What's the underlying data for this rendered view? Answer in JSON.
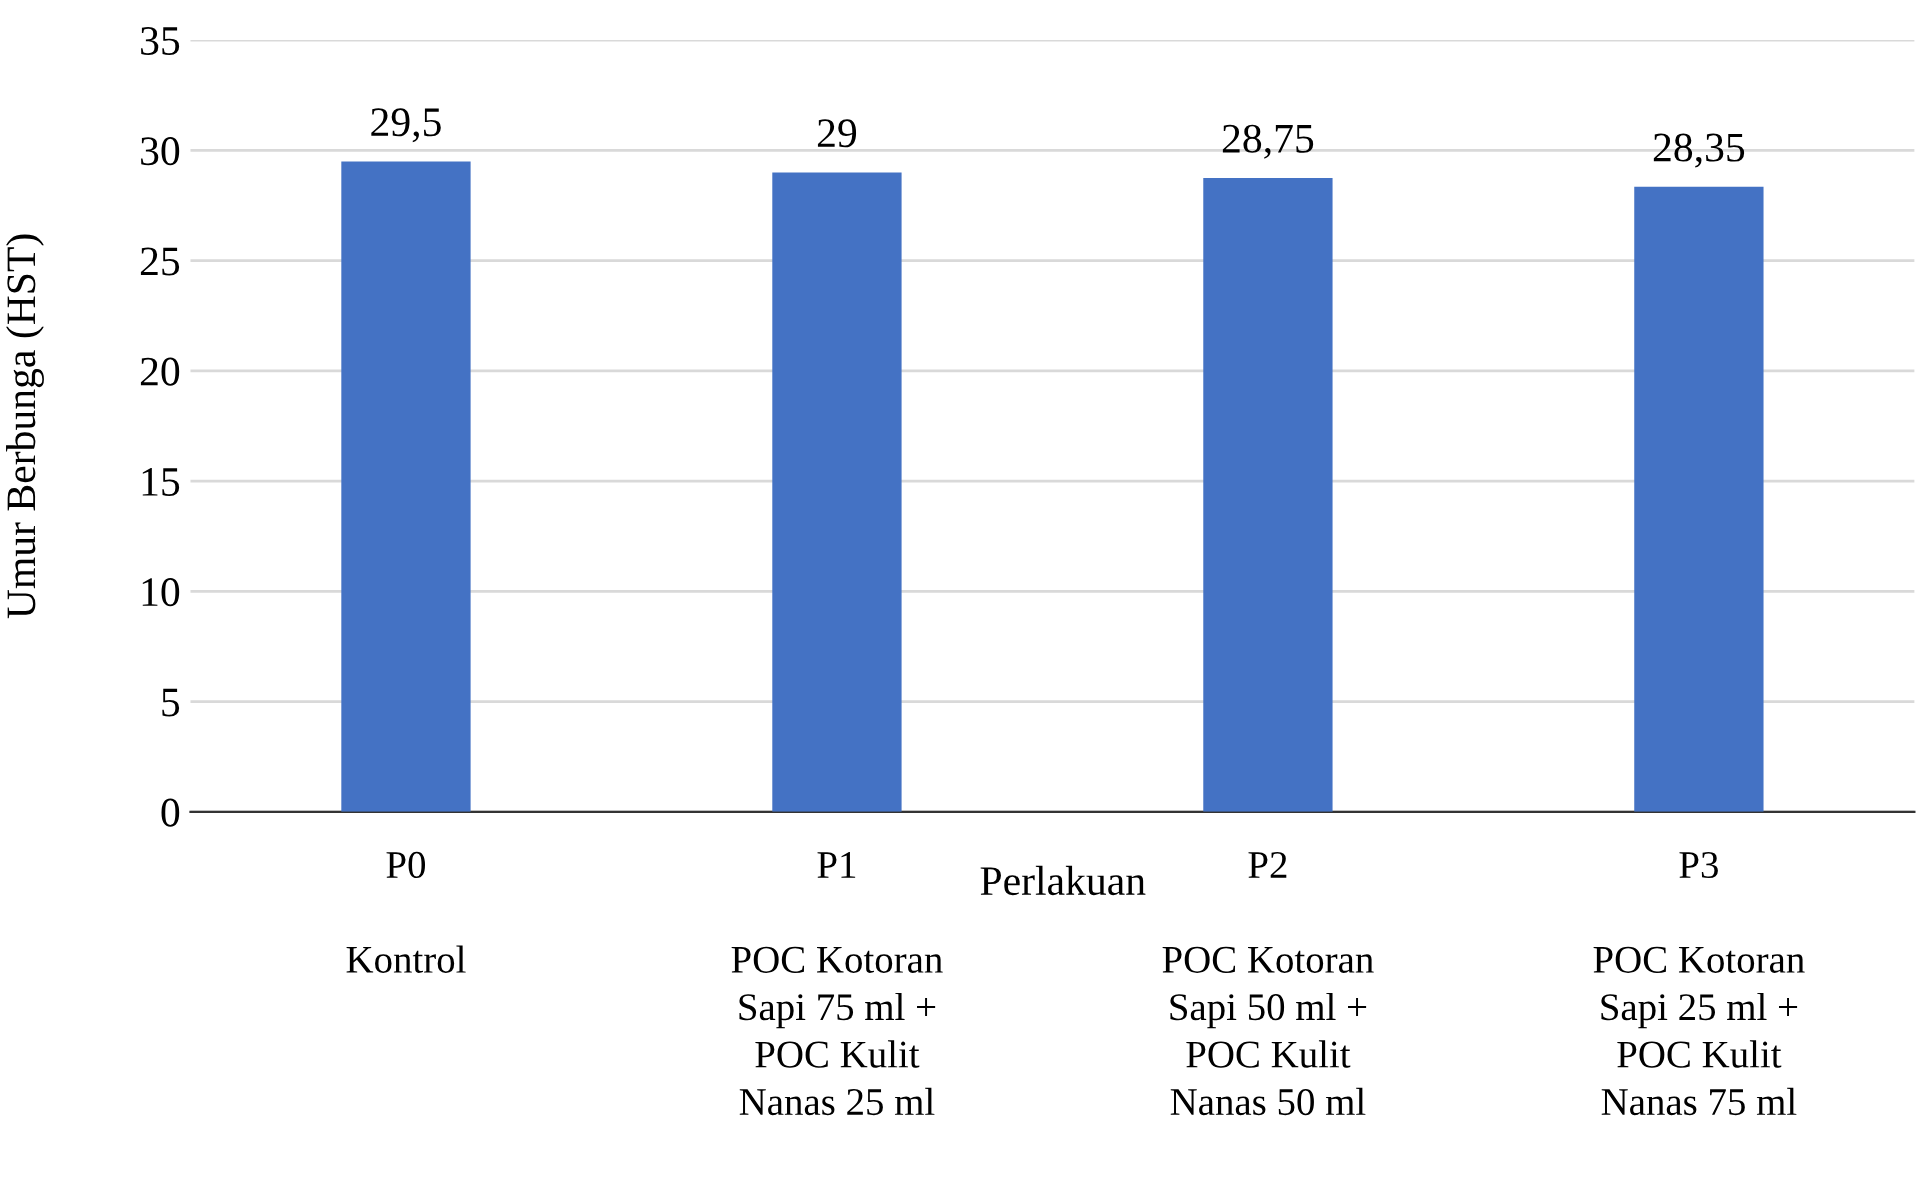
{
  "chart_data": {
    "type": "bar",
    "xlabel": "Perlakuan",
    "ylabel": "Umur Berbunga (HST)",
    "categories": [
      "P0\n\nKontrol",
      "P1\n\nPOC Kotoran\nSapi 75 ml +\nPOC Kulit\nNanas 25 ml",
      "P2\n\nPOC Kotoran\nSapi 50 ml +\nPOC Kulit\nNanas 50 ml",
      "P3\n\nPOC Kotoran\nSapi 25 ml +\nPOC Kulit\nNanas 75 ml"
    ],
    "values": [
      29.5,
      29,
      28.75,
      28.35
    ],
    "value_labels": [
      "29,5",
      "29",
      "28,75",
      "28,35"
    ],
    "color": "#4472c4",
    "ylim": [
      0,
      35
    ],
    "yticks": [
      0,
      5,
      10,
      15,
      20,
      25,
      30,
      35
    ],
    "grid": "y"
  }
}
